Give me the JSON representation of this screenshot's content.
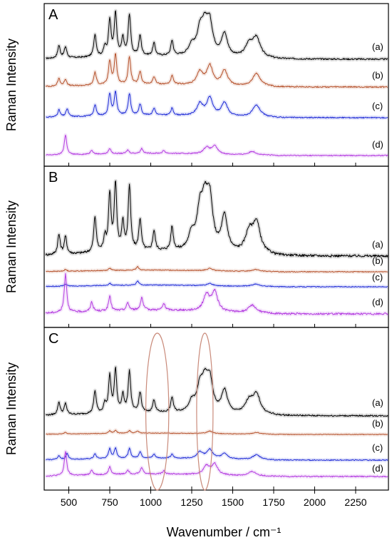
{
  "chart_data": {
    "type": "line",
    "xlabel": "Wavenumber / cm⁻¹",
    "ylabel": "Raman Intensity",
    "xlim": [
      350,
      2450
    ],
    "xticks": [
      500,
      750,
      1000,
      1250,
      1500,
      1750,
      2000,
      2250
    ],
    "tick_labels": [
      "500",
      "750",
      "1000",
      "1250",
      "1500",
      "1750",
      "2000",
      "2250"
    ],
    "grid": false,
    "series_colors": {
      "a": "#000000",
      "b": "#b5502a",
      "c": "#1f2bd6",
      "d": "#b43ce0"
    },
    "panels": [
      {
        "label": "A",
        "curves": [
          {
            "label": "(a)",
            "color": "#000000",
            "peaks": [
              [
                440,
                0.25
              ],
              [
                480,
                0.22
              ],
              [
                660,
                0.45
              ],
              [
                720,
                0.18
              ],
              [
                750,
                0.72
              ],
              [
                785,
                0.85
              ],
              [
                830,
                0.35
              ],
              [
                870,
                0.82
              ],
              [
                935,
                0.4
              ],
              [
                1020,
                0.25
              ],
              [
                1130,
                0.3
              ],
              [
                1250,
                0.2
              ],
              [
                1300,
                0.45
              ],
              [
                1330,
                0.5
              ],
              [
                1360,
                0.6
              ],
              [
                1450,
                0.45
              ],
              [
                1600,
                0.25
              ],
              [
                1645,
                0.38
              ]
            ]
          },
          {
            "label": "(b)",
            "color": "#b5502a",
            "peaks": [
              [
                440,
                0.18
              ],
              [
                480,
                0.16
              ],
              [
                660,
                0.3
              ],
              [
                750,
                0.55
              ],
              [
                785,
                0.7
              ],
              [
                870,
                0.65
              ],
              [
                935,
                0.3
              ],
              [
                1020,
                0.18
              ],
              [
                1130,
                0.2
              ],
              [
                1300,
                0.3
              ],
              [
                1360,
                0.45
              ],
              [
                1450,
                0.35
              ],
              [
                1645,
                0.3
              ]
            ]
          },
          {
            "label": "(c)",
            "color": "#1f2bd6",
            "peaks": [
              [
                440,
                0.18
              ],
              [
                490,
                0.2
              ],
              [
                660,
                0.28
              ],
              [
                750,
                0.55
              ],
              [
                785,
                0.6
              ],
              [
                870,
                0.55
              ],
              [
                935,
                0.28
              ],
              [
                1020,
                0.18
              ],
              [
                1130,
                0.18
              ],
              [
                1300,
                0.3
              ],
              [
                1360,
                0.45
              ],
              [
                1450,
                0.35
              ],
              [
                1645,
                0.3
              ]
            ]
          },
          {
            "label": "(d)",
            "color": "#b43ce0",
            "peaks": [
              [
                480,
                0.55
              ],
              [
                640,
                0.12
              ],
              [
                750,
                0.15
              ],
              [
                860,
                0.1
              ],
              [
                945,
                0.14
              ],
              [
                1080,
                0.08
              ],
              [
                1340,
                0.18
              ],
              [
                1390,
                0.22
              ],
              [
                1620,
                0.1
              ]
            ]
          }
        ]
      },
      {
        "label": "B",
        "curves": [
          {
            "label": "(a)",
            "color": "#000000",
            "peaks": [
              [
                440,
                0.25
              ],
              [
                480,
                0.22
              ],
              [
                660,
                0.45
              ],
              [
                720,
                0.18
              ],
              [
                750,
                0.72
              ],
              [
                785,
                0.85
              ],
              [
                830,
                0.35
              ],
              [
                870,
                0.82
              ],
              [
                935,
                0.4
              ],
              [
                1020,
                0.25
              ],
              [
                1130,
                0.3
              ],
              [
                1250,
                0.2
              ],
              [
                1300,
                0.45
              ],
              [
                1330,
                0.5
              ],
              [
                1360,
                0.6
              ],
              [
                1450,
                0.45
              ],
              [
                1600,
                0.25
              ],
              [
                1645,
                0.38
              ]
            ]
          },
          {
            "label": "(b)",
            "color": "#b5502a",
            "peaks": [
              [
                480,
                0.06
              ],
              [
                750,
                0.08
              ],
              [
                920,
                0.12
              ],
              [
                1360,
                0.08
              ],
              [
                1640,
                0.07
              ]
            ]
          },
          {
            "label": "(c)",
            "color": "#1f2bd6",
            "peaks": [
              [
                480,
                0.08
              ],
              [
                750,
                0.08
              ],
              [
                920,
                0.14
              ],
              [
                1360,
                0.08
              ],
              [
                1640,
                0.08
              ]
            ]
          },
          {
            "label": "(d)",
            "color": "#b43ce0",
            "peaks": [
              [
                480,
                0.6
              ],
              [
                640,
                0.15
              ],
              [
                750,
                0.22
              ],
              [
                860,
                0.12
              ],
              [
                945,
                0.2
              ],
              [
                1080,
                0.1
              ],
              [
                1340,
                0.25
              ],
              [
                1390,
                0.3
              ],
              [
                1620,
                0.12
              ]
            ]
          }
        ]
      },
      {
        "label": "C",
        "curves": [
          {
            "label": "(a)",
            "color": "#000000",
            "peaks": [
              [
                440,
                0.25
              ],
              [
                480,
                0.22
              ],
              [
                660,
                0.45
              ],
              [
                720,
                0.18
              ],
              [
                750,
                0.72
              ],
              [
                785,
                0.85
              ],
              [
                830,
                0.35
              ],
              [
                870,
                0.82
              ],
              [
                935,
                0.4
              ],
              [
                1020,
                0.25
              ],
              [
                1130,
                0.3
              ],
              [
                1250,
                0.2
              ],
              [
                1300,
                0.45
              ],
              [
                1330,
                0.5
              ],
              [
                1360,
                0.6
              ],
              [
                1450,
                0.45
              ],
              [
                1600,
                0.25
              ],
              [
                1645,
                0.38
              ]
            ]
          },
          {
            "label": "(b)",
            "color": "#b5502a",
            "peaks": [
              [
                480,
                0.08
              ],
              [
                750,
                0.12
              ],
              [
                785,
                0.14
              ],
              [
                870,
                0.12
              ],
              [
                920,
                0.1
              ],
              [
                1360,
                0.12
              ],
              [
                1645,
                0.08
              ]
            ]
          },
          {
            "label": "(c)",
            "color": "#1f2bd6",
            "peaks": [
              [
                440,
                0.12
              ],
              [
                490,
                0.18
              ],
              [
                660,
                0.15
              ],
              [
                750,
                0.3
              ],
              [
                785,
                0.32
              ],
              [
                870,
                0.3
              ],
              [
                935,
                0.2
              ],
              [
                1020,
                0.12
              ],
              [
                1130,
                0.12
              ],
              [
                1300,
                0.2
              ],
              [
                1360,
                0.28
              ],
              [
                1450,
                0.18
              ],
              [
                1645,
                0.15
              ]
            ]
          },
          {
            "label": "(d)",
            "color": "#b43ce0",
            "peaks": [
              [
                480,
                0.55
              ],
              [
                640,
                0.12
              ],
              [
                750,
                0.18
              ],
              [
                860,
                0.1
              ],
              [
                945,
                0.16
              ],
              [
                1080,
                0.08
              ],
              [
                1340,
                0.2
              ],
              [
                1390,
                0.25
              ],
              [
                1620,
                0.1
              ]
            ]
          }
        ],
        "highlight_regions": [
          {
            "center": 1040,
            "range": [
              960,
              1100
            ]
          },
          {
            "center": 1330,
            "range": [
              1280,
              1380
            ]
          }
        ]
      }
    ]
  }
}
